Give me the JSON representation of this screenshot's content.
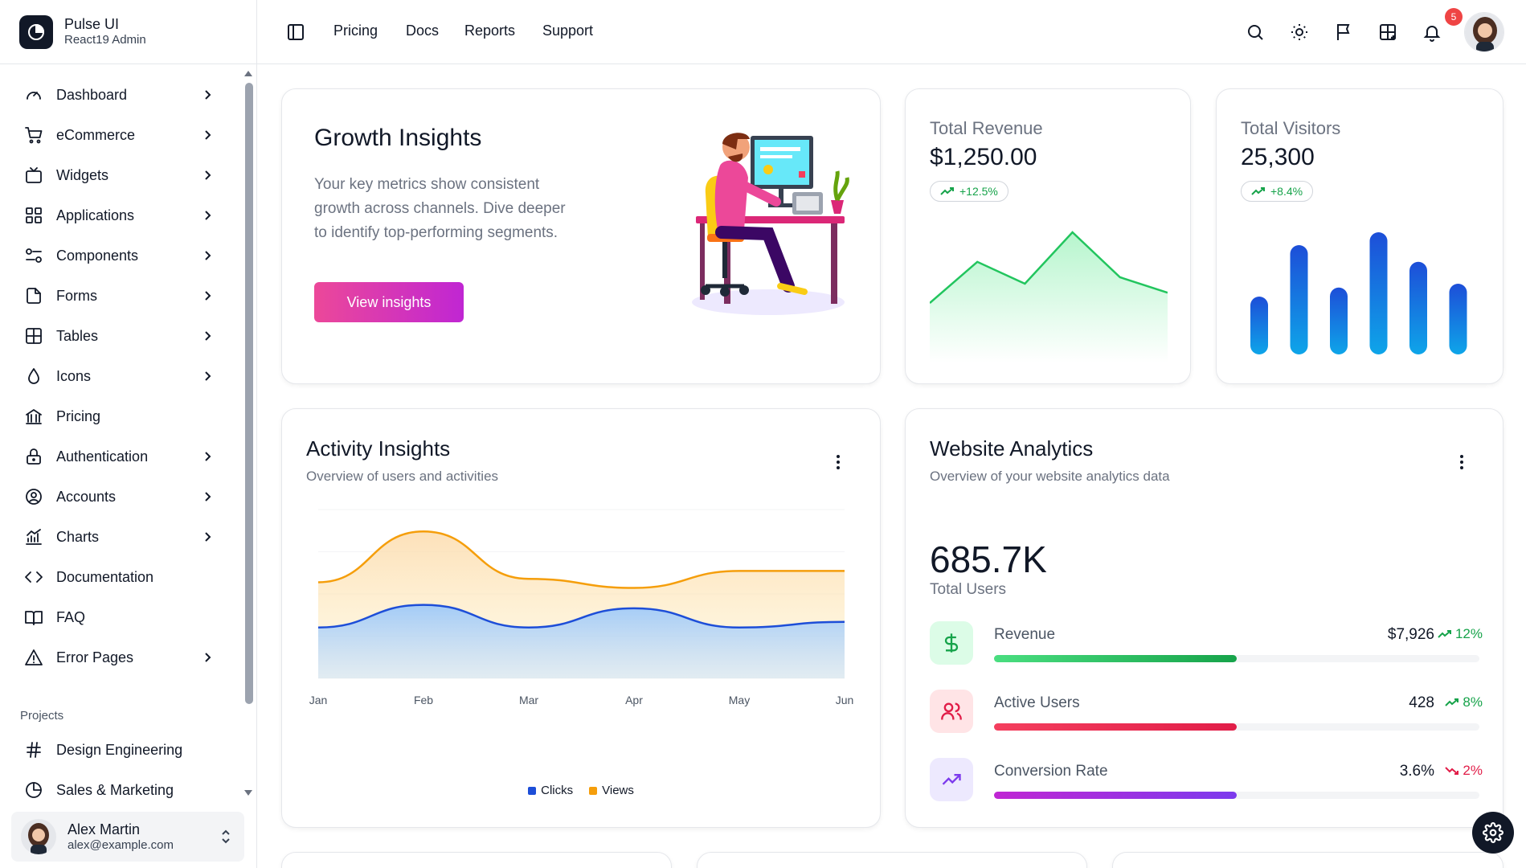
{
  "brand": {
    "name": "Pulse UI",
    "subtitle": "React19 Admin"
  },
  "sidebar": {
    "items": [
      {
        "label": "Dashboard",
        "icon": "gauge-icon",
        "has_children": true
      },
      {
        "label": "eCommerce",
        "icon": "cart-icon",
        "has_children": true
      },
      {
        "label": "Widgets",
        "icon": "tv-icon",
        "has_children": true
      },
      {
        "label": "Applications",
        "icon": "grid-icon",
        "has_children": true
      },
      {
        "label": "Components",
        "icon": "toggles-icon",
        "has_children": true
      },
      {
        "label": "Forms",
        "icon": "file-icon",
        "has_children": true
      },
      {
        "label": "Tables",
        "icon": "table-icon",
        "has_children": true
      },
      {
        "label": "Icons",
        "icon": "droplet-icon",
        "has_children": true
      },
      {
        "label": "Pricing",
        "icon": "bank-icon",
        "has_children": false
      },
      {
        "label": "Authentication",
        "icon": "lock-icon",
        "has_children": true
      },
      {
        "label": "Accounts",
        "icon": "user-circle-icon",
        "has_children": true
      },
      {
        "label": "Charts",
        "icon": "chart-icon",
        "has_children": true
      },
      {
        "label": "Documentation",
        "icon": "code-icon",
        "has_children": false
      },
      {
        "label": "FAQ",
        "icon": "book-icon",
        "has_children": false
      },
      {
        "label": "Error Pages",
        "icon": "warning-icon",
        "has_children": true
      }
    ],
    "projects_heading": "Projects",
    "projects": [
      {
        "label": "Design Engineering",
        "icon": "hash-icon"
      },
      {
        "label": "Sales & Marketing",
        "icon": "pie-icon"
      }
    ]
  },
  "user": {
    "name": "Alex Martin",
    "email": "alex@example.com"
  },
  "header": {
    "links": [
      "Pricing",
      "Docs",
      "Reports",
      "Support"
    ],
    "notification_count": "5"
  },
  "growth": {
    "title": "Growth Insights",
    "description": "Your key metrics show consistent growth across channels. Dive deeper to identify top-performing segments.",
    "button": "View insights"
  },
  "revenue": {
    "label": "Total Revenue",
    "value": "$1,250.00",
    "change": "+12.5%",
    "spark": [
      40,
      72,
      55,
      95,
      60,
      48
    ]
  },
  "visitors": {
    "label": "Total Visitors",
    "value": "25,300",
    "change": "+8.4%",
    "bars": [
      45,
      85,
      52,
      95,
      72,
      55
    ]
  },
  "activity": {
    "title": "Activity Insights",
    "subtitle": "Overview of users and activities",
    "chart_data": {
      "type": "area",
      "categories": [
        "Jan",
        "Feb",
        "Mar",
        "Apr",
        "May",
        "Jun"
      ],
      "series": [
        {
          "name": "Clicks",
          "color": "#1d4ed8",
          "values": [
            45,
            65,
            45,
            62,
            45,
            50
          ]
        },
        {
          "name": "Views",
          "color": "#f59e0b",
          "values": [
            85,
            130,
            88,
            80,
            95,
            95
          ]
        }
      ]
    }
  },
  "analytics": {
    "title": "Website Analytics",
    "subtitle": "Overview of your website analytics data",
    "total_value": "685.7K",
    "total_label": "Total Users",
    "metrics": [
      {
        "label": "Revenue",
        "value": "$7,926",
        "change": "12%",
        "direction": "up",
        "progress": 0.5,
        "color": "#22c55e",
        "icon": "dollar-icon"
      },
      {
        "label": "Active Users",
        "value": "428",
        "change": "8%",
        "direction": "up",
        "progress": 0.5,
        "color": "#f43f5e",
        "icon": "users-icon"
      },
      {
        "label": "Conversion Rate",
        "value": "3.6%",
        "change": "2%",
        "direction": "down",
        "progress": 0.5,
        "color": "#a21caf",
        "icon": "trend-icon"
      }
    ]
  }
}
